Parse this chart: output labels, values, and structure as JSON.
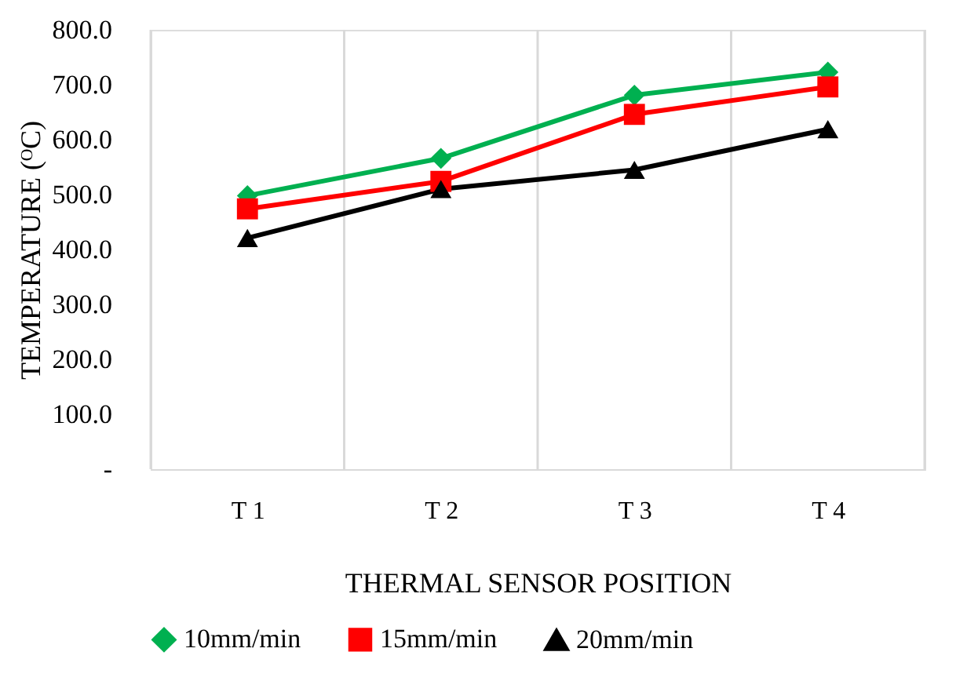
{
  "chart_data": {
    "type": "line",
    "xlabel": "THERMAL SENSOR POSITION",
    "ylabel": "TEMPERATURE (ᴼC)",
    "categories": [
      "T 1",
      "T 2",
      "T 3",
      "T 4"
    ],
    "series": [
      {
        "name": "10mm/min",
        "color": "#00b050",
        "marker": "diamond",
        "values": [
          498,
          566,
          681,
          723
        ]
      },
      {
        "name": "15mm/min",
        "color": "#ff0000",
        "marker": "square",
        "values": [
          474,
          524,
          646,
          696
        ]
      },
      {
        "name": "20mm/min",
        "color": "#000000",
        "marker": "triangle",
        "values": [
          421,
          510,
          545,
          619
        ]
      }
    ],
    "ylim": [
      0,
      800
    ],
    "yticks": [
      {
        "value": 0,
        "label": "-"
      },
      {
        "value": 100,
        "label": "100.0"
      },
      {
        "value": 200,
        "label": "200.0"
      },
      {
        "value": 300,
        "label": "300.0"
      },
      {
        "value": 400,
        "label": "400.0"
      },
      {
        "value": 500,
        "label": "500.0"
      },
      {
        "value": 600,
        "label": "600.0"
      },
      {
        "value": 700,
        "label": "700.0"
      },
      {
        "value": 800,
        "label": "800.0"
      }
    ],
    "grid": "x",
    "legend": "bottom",
    "line_style": "solid"
  }
}
